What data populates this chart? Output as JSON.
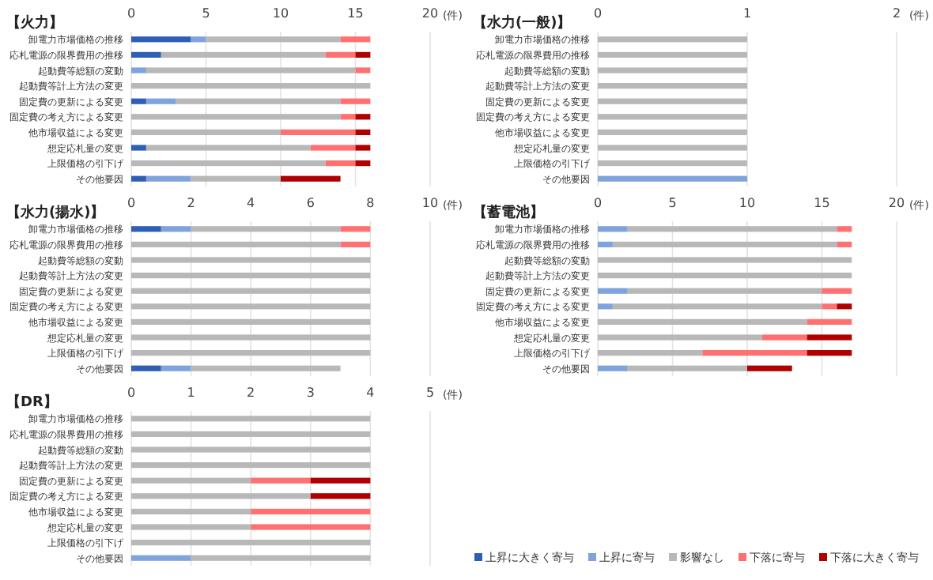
{
  "chart_data": [
    {
      "type": "bar",
      "orientation": "horizontal",
      "stacked": true,
      "title": "【火力】",
      "xlabel": "(件)",
      "xlim": [
        0,
        20
      ],
      "xticks": [
        0,
        5,
        10,
        15,
        20
      ],
      "grid": "x",
      "categories": [
        "卸電力市場価格の推移",
        "応札電源の限界費用の推移",
        "起動費等総額の変動",
        "起動費等計上方法の変更",
        "固定費の更新による変更",
        "固定費の考え方による変更",
        "他市場収益による変更",
        "想定応札量の変更",
        "上限価格の引下げ",
        "その他要因"
      ],
      "series": [
        {
          "color": "#2e5fb5",
          "values": [
            4,
            2,
            0,
            0,
            1,
            0,
            0,
            1,
            0,
            1
          ]
        },
        {
          "color": "#7fa3dc",
          "values": [
            1,
            0,
            1,
            0,
            2,
            0,
            0,
            0,
            0,
            3
          ]
        },
        {
          "color": "#b8b8b8",
          "values": [
            9,
            11,
            14,
            16,
            11,
            14,
            10,
            11,
            13,
            6
          ]
        },
        {
          "color": "#ff7070",
          "values": [
            2,
            2,
            1,
            0,
            2,
            1,
            5,
            3,
            2,
            0
          ]
        },
        {
          "color": "#b00000",
          "values": [
            0,
            1,
            0,
            0,
            0,
            1,
            1,
            1,
            1,
            4
          ]
        }
      ]
    },
    {
      "type": "bar",
      "orientation": "horizontal",
      "stacked": true,
      "title": "【水力(一般)】",
      "xlabel": "(件)",
      "xlim": [
        0,
        2
      ],
      "xticks": [
        0,
        1,
        2
      ],
      "grid": "x",
      "categories": [
        "卸電力市場価格の推移",
        "応札電源の限界費用の推移",
        "起動費等総額の変動",
        "起動費等計上方法の変更",
        "固定費の更新による変更",
        "固定費の考え方による変更",
        "他市場収益による変更",
        "想定応札量の変更",
        "上限価格の引下げ",
        "その他要因"
      ],
      "series": [
        {
          "color": "#7fa3dc",
          "values": [
            0,
            0,
            0,
            0,
            0,
            0,
            0,
            0,
            0,
            1
          ]
        },
        {
          "color": "#b8b8b8",
          "values": [
            1,
            1,
            1,
            1,
            1,
            1,
            1,
            1,
            1,
            0
          ]
        }
      ]
    },
    {
      "type": "bar",
      "orientation": "horizontal",
      "stacked": true,
      "title": "【水力(揚水)】",
      "xlabel": "(件)",
      "xlim": [
        0,
        10
      ],
      "xticks": [
        0,
        2,
        4,
        6,
        8,
        10
      ],
      "grid": "x",
      "categories": [
        "卸電力市場価格の推移",
        "応札電源の限界費用の推移",
        "起動費等総額の変動",
        "起動費等計上方法の変更",
        "固定費の更新による変更",
        "固定費の考え方による変更",
        "他市場収益による変更",
        "想定応札量の変更",
        "上限価格の引下げ",
        "その他要因"
      ],
      "series": [
        {
          "color": "#2e5fb5",
          "values": [
            1,
            0,
            0,
            0,
            0,
            0,
            0,
            0,
            0,
            1
          ]
        },
        {
          "color": "#7fa3dc",
          "values": [
            1,
            0,
            0,
            0,
            0,
            0,
            0,
            0,
            0,
            1
          ]
        },
        {
          "color": "#b8b8b8",
          "values": [
            5,
            7,
            8,
            8,
            8,
            8,
            8,
            8,
            8,
            5
          ]
        },
        {
          "color": "#ff7070",
          "values": [
            1,
            1,
            0,
            0,
            0,
            0,
            0,
            0,
            0,
            0
          ]
        }
      ]
    },
    {
      "type": "bar",
      "orientation": "horizontal",
      "stacked": true,
      "title": "【蓄電池】",
      "xlabel": "(件)",
      "xlim": [
        0,
        20
      ],
      "xticks": [
        0,
        5,
        10,
        15,
        20
      ],
      "grid": "x",
      "categories": [
        "卸電力市場価格の推移",
        "応札電源の限界費用の推移",
        "起動費等総額の変動",
        "起動費等計上方法の変更",
        "固定費の更新による変更",
        "固定費の考え方による変更",
        "他市場収益による変更",
        "想定応札量の変更",
        "上限価格の引下げ",
        "その他要因"
      ],
      "series": [
        {
          "color": "#7fa3dc",
          "values": [
            2,
            1,
            0,
            0,
            2,
            1,
            0,
            0,
            0,
            2
          ]
        },
        {
          "color": "#b8b8b8",
          "values": [
            14,
            15,
            17,
            17,
            13,
            14,
            14,
            11,
            7,
            8
          ]
        },
        {
          "color": "#ff7070",
          "values": [
            1,
            1,
            0,
            0,
            2,
            1,
            3,
            3,
            7,
            0
          ]
        },
        {
          "color": "#b00000",
          "values": [
            0,
            0,
            0,
            0,
            0,
            1,
            0,
            3,
            3,
            3
          ]
        }
      ]
    },
    {
      "type": "bar",
      "orientation": "horizontal",
      "stacked": true,
      "title": "【DR】",
      "xlabel": "(件)",
      "xlim": [
        0,
        5
      ],
      "xticks": [
        0,
        1,
        2,
        3,
        4,
        5
      ],
      "grid": "x",
      "legend": "bottom",
      "categories": [
        "卸電力市場価格の推移",
        "応札電源の限界費用の推移",
        "起動費等総額の変動",
        "起動費等計上方法の変更",
        "固定費の更新による変更",
        "固定費の考え方による変更",
        "他市場収益による変更",
        "想定応札量の変更",
        "上限価格の引下げ",
        "その他要因"
      ],
      "series": [
        {
          "name": "上昇に大きく寄与",
          "color": "#2e5fb5",
          "values": [
            0,
            0,
            0,
            0,
            0,
            0,
            0,
            0,
            0,
            0
          ]
        },
        {
          "name": "上昇に寄与",
          "color": "#7fa3dc",
          "values": [
            0,
            0,
            0,
            0,
            0,
            0,
            0,
            0,
            0,
            1
          ]
        },
        {
          "name": "影響なし",
          "color": "#b8b8b8",
          "values": [
            4,
            4,
            4,
            4,
            2,
            3,
            2,
            2,
            4,
            3
          ]
        },
        {
          "name": "下落に寄与",
          "color": "#ff7070",
          "values": [
            0,
            0,
            0,
            0,
            1,
            0,
            2,
            2,
            0,
            0
          ]
        },
        {
          "name": "下落に大きく寄与",
          "color": "#b00000",
          "values": [
            0,
            0,
            0,
            0,
            1,
            1,
            0,
            0,
            0,
            0
          ]
        }
      ]
    }
  ]
}
